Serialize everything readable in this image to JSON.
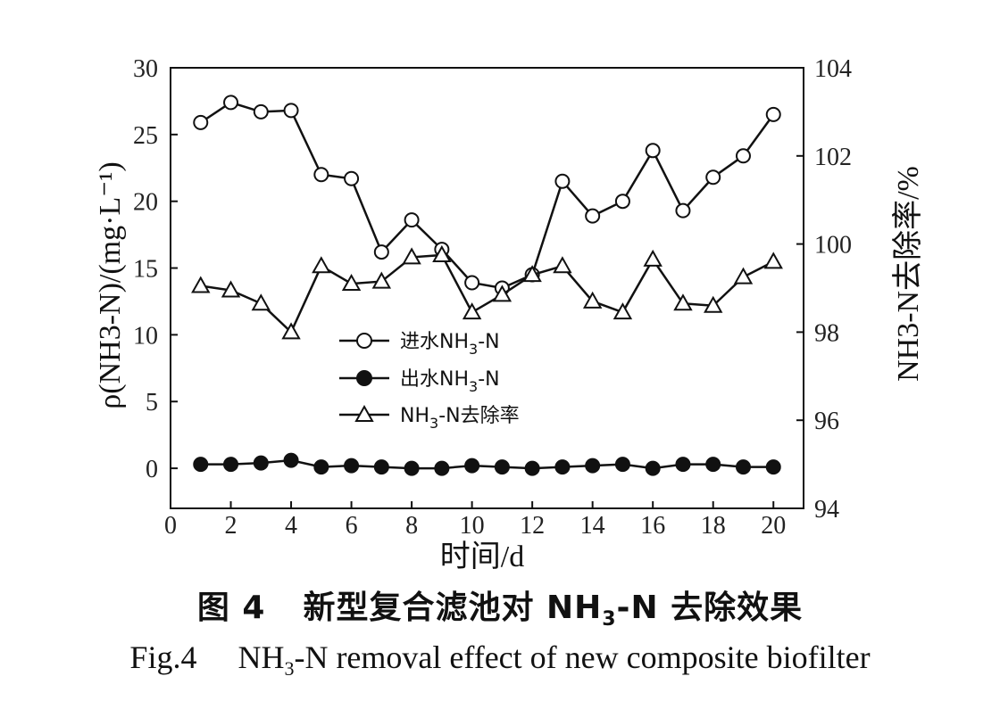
{
  "chart_data": {
    "type": "line",
    "xlabel": "时间/d",
    "ylabel_left": "ρ(NH3-N)/(mg·L⁻¹)",
    "ylabel_right": "NH3-N去除率/%",
    "xlim": [
      0,
      21
    ],
    "xticks": [
      0,
      2,
      4,
      6,
      8,
      10,
      12,
      14,
      16,
      18,
      20
    ],
    "ylim_left": [
      -3,
      30
    ],
    "yticks_left": [
      0,
      5,
      10,
      15,
      20,
      25,
      30
    ],
    "ylim_right": [
      94,
      104
    ],
    "yticks_right": [
      94,
      96,
      98,
      100,
      102,
      104
    ],
    "x": [
      1,
      2,
      3,
      4,
      5,
      6,
      7,
      8,
      9,
      10,
      11,
      12,
      13,
      14,
      15,
      16,
      17,
      18,
      19,
      20
    ],
    "series": [
      {
        "name": "进水NH3-N",
        "axis": "left",
        "marker": "open-circle",
        "values": [
          25.9,
          27.4,
          26.7,
          26.8,
          22.0,
          21.7,
          16.2,
          18.6,
          16.4,
          13.9,
          13.5,
          14.5,
          21.5,
          18.9,
          20.0,
          23.8,
          19.3,
          21.8,
          23.4,
          26.5
        ]
      },
      {
        "name": "出水NH3-N",
        "axis": "left",
        "marker": "filled-circle",
        "values": [
          0.3,
          0.3,
          0.4,
          0.6,
          0.1,
          0.2,
          0.1,
          0.0,
          0.0,
          0.2,
          0.1,
          0.0,
          0.1,
          0.2,
          0.3,
          0.0,
          0.3,
          0.3,
          0.1,
          0.1
        ]
      },
      {
        "name": "NH3-N去除率",
        "axis": "right",
        "marker": "open-triangle",
        "values": [
          99.05,
          98.95,
          98.65,
          98.0,
          99.5,
          99.1,
          99.15,
          99.7,
          99.75,
          98.45,
          98.85,
          99.3,
          99.5,
          98.7,
          98.45,
          99.65,
          98.65,
          98.6,
          99.25,
          99.6
        ]
      }
    ],
    "legend": {
      "position": "center-left",
      "entries": [
        {
          "label_pre": "进水NH",
          "sub": "3",
          "label_post": "-N"
        },
        {
          "label_pre": "出水NH",
          "sub": "3",
          "label_post": "-N"
        },
        {
          "label_pre": "NH",
          "sub": "3",
          "label_post": "-N去除率"
        }
      ]
    },
    "grid": false
  },
  "caption": {
    "cn_fig": "图 4",
    "cn_pre": "新型复合滤池对 NH",
    "cn_sub": "3",
    "cn_post": "-N 去除效果",
    "en_fig": "Fig.4",
    "en_pre": "NH",
    "en_sub": "3",
    "en_post": "-N removal effect of new composite biofilter"
  },
  "colors": {
    "line": "#111111",
    "marker_fill_open": "#ffffff",
    "marker_fill_solid": "#111111"
  }
}
